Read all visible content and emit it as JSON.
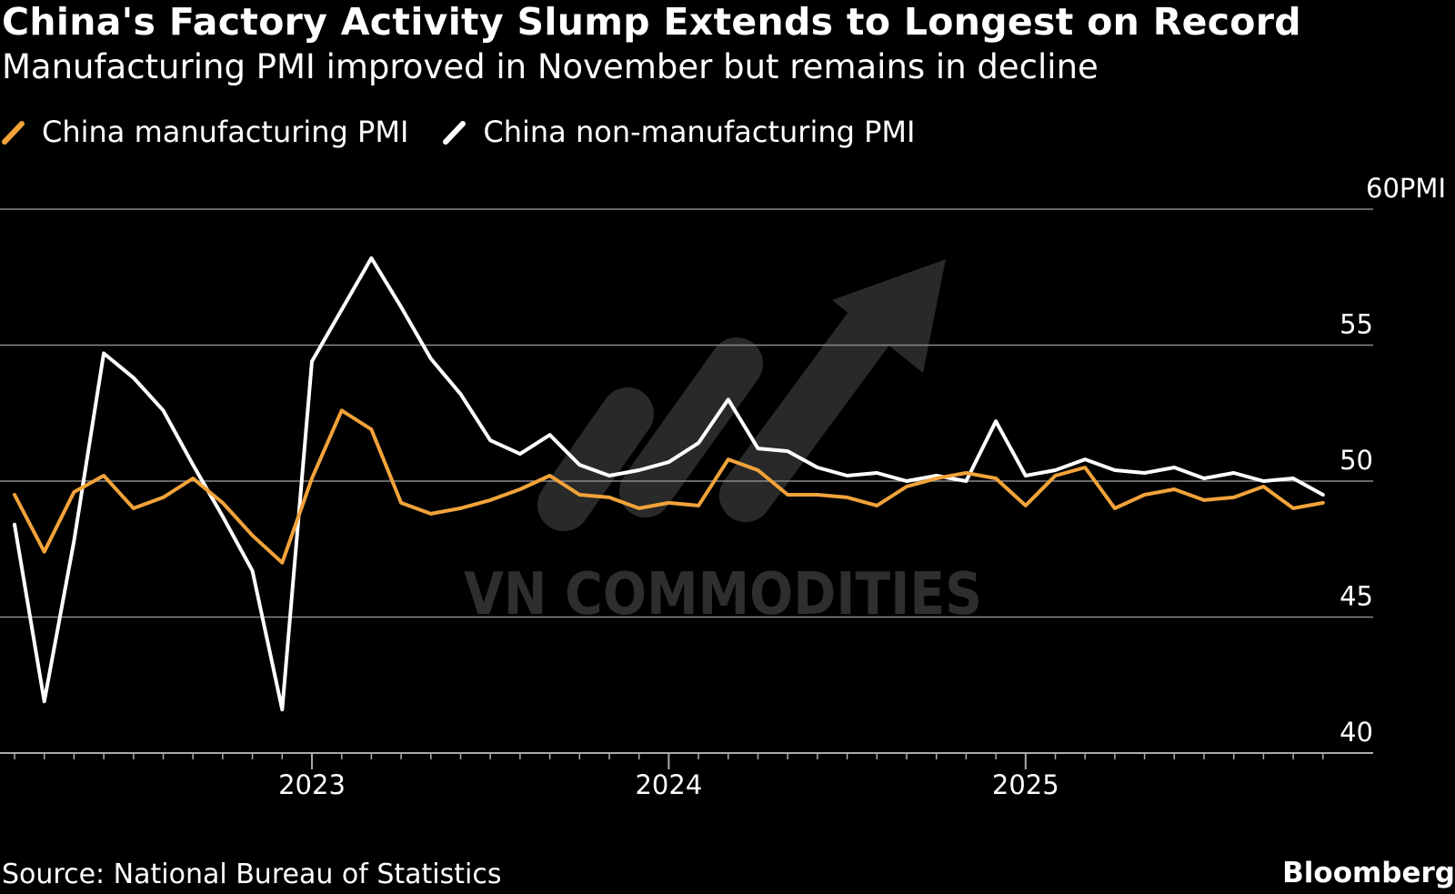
{
  "header": {
    "title": "China's Factory Activity Slump Extends to Longest on Record",
    "subtitle": "Manufacturing PMI improved in November but remains in decline"
  },
  "colors": {
    "background": "#000000",
    "manufacturing": "#f2a33a",
    "non_manufacturing": "#ffffff",
    "grid": "#8a8a8a",
    "watermark": "#3a3a3a"
  },
  "footer": {
    "source": "Source: National Bureau of Statistics",
    "brand": "Bloomberg"
  },
  "watermark": {
    "text": "VN COMMODITIES",
    "icon": "rising-arrow-icon"
  },
  "chart_data": {
    "type": "line",
    "title": "China's Factory Activity Slump Extends to Longest on Record",
    "subtitle": "Manufacturing PMI improved in November but remains in decline",
    "xlabel": "",
    "ylabel": "PMI",
    "y_unit_label": "PMI",
    "ylim": [
      40,
      60
    ],
    "yticks": [
      40,
      45,
      50,
      55,
      60
    ],
    "grid": true,
    "legend_placement": "top-left",
    "x_start": "2022-03",
    "x_end": "2025-11",
    "x_tick_labels": [
      "2023",
      "2024",
      "2025"
    ],
    "x_tick_label_months": [
      10,
      22,
      34
    ],
    "x": [
      "Mar 2022",
      "Apr 2022",
      "May 2022",
      "Jun 2022",
      "Jul 2022",
      "Aug 2022",
      "Sep 2022",
      "Oct 2022",
      "Nov 2022",
      "Dec 2022",
      "Jan 2023",
      "Feb 2023",
      "Mar 2023",
      "Apr 2023",
      "May 2023",
      "Jun 2023",
      "Jul 2023",
      "Aug 2023",
      "Sep 2023",
      "Oct 2023",
      "Nov 2023",
      "Dec 2023",
      "Jan 2024",
      "Feb 2024",
      "Mar 2024",
      "Apr 2024",
      "May 2024",
      "Jun 2024",
      "Jul 2024",
      "Aug 2024",
      "Sep 2024",
      "Oct 2024",
      "Nov 2024",
      "Dec 2024",
      "Jan 2025",
      "Feb 2025",
      "Mar 2025",
      "Apr 2025",
      "May 2025",
      "Jun 2025",
      "Jul 2025",
      "Aug 2025",
      "Sep 2025",
      "Oct 2025",
      "Nov 2025"
    ],
    "series": [
      {
        "name": "China manufacturing PMI",
        "color": "#f2a33a",
        "values": [
          49.5,
          47.4,
          49.6,
          50.2,
          49.0,
          49.4,
          50.1,
          49.2,
          48.0,
          47.0,
          50.1,
          52.6,
          51.9,
          49.2,
          48.8,
          49.0,
          49.3,
          49.7,
          50.2,
          49.5,
          49.4,
          49.0,
          49.2,
          49.1,
          50.8,
          50.4,
          49.5,
          49.5,
          49.4,
          49.1,
          49.8,
          50.1,
          50.3,
          50.1,
          49.1,
          50.2,
          50.5,
          49.0,
          49.5,
          49.7,
          49.3,
          49.4,
          49.8,
          49.0,
          49.2
        ]
      },
      {
        "name": "China non-manufacturing PMI",
        "color": "#ffffff",
        "values": [
          48.4,
          41.9,
          47.8,
          54.7,
          53.8,
          52.6,
          50.6,
          48.7,
          46.7,
          41.6,
          54.4,
          56.3,
          58.2,
          56.4,
          54.5,
          53.2,
          51.5,
          51.0,
          51.7,
          50.6,
          50.2,
          50.4,
          50.7,
          51.4,
          53.0,
          51.2,
          51.1,
          50.5,
          50.2,
          50.3,
          50.0,
          50.2,
          50.0,
          52.2,
          50.2,
          50.4,
          50.8,
          50.4,
          50.3,
          50.5,
          50.1,
          50.3,
          50.0,
          50.1,
          49.5
        ]
      }
    ]
  }
}
